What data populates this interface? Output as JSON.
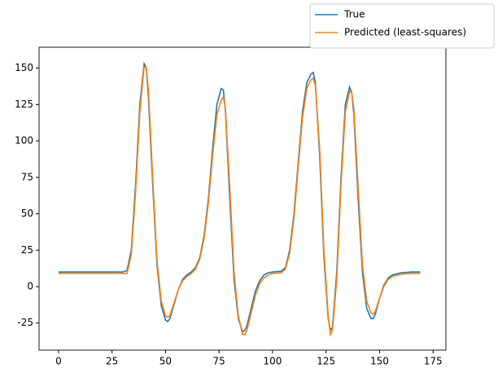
{
  "chart_data": {
    "type": "line",
    "x": [
      0,
      30,
      32,
      34,
      36,
      38,
      40,
      41,
      42,
      44,
      46,
      48,
      50,
      51,
      52,
      54,
      56,
      58,
      60,
      62,
      64,
      66,
      68,
      70,
      72,
      74,
      76,
      77,
      78,
      80,
      82,
      84,
      86,
      87,
      88,
      90,
      92,
      94,
      96,
      98,
      100,
      104,
      106,
      108,
      110,
      112,
      114,
      116,
      118,
      119,
      120,
      122,
      124,
      126,
      127,
      128,
      130,
      132,
      134,
      136,
      137,
      138,
      140,
      142,
      144,
      146,
      147,
      148,
      150,
      152,
      154,
      156,
      160,
      165,
      169
    ],
    "series": [
      {
        "name": "True",
        "color": "#1f77b4",
        "values": [
          10,
          10,
          11,
          25,
          70,
          125,
          153,
          150,
          130,
          70,
          15,
          -13,
          -23,
          -24,
          -22,
          -12,
          -2,
          5,
          8,
          10,
          13,
          20,
          35,
          60,
          95,
          125,
          136,
          135,
          120,
          60,
          5,
          -22,
          -31,
          -30,
          -27,
          -15,
          -3,
          4,
          8,
          9.5,
          10,
          10.5,
          13,
          25,
          50,
          85,
          120,
          140,
          146,
          147,
          140,
          90,
          20,
          -22,
          -30,
          -28,
          10,
          75,
          125,
          137,
          133,
          118,
          60,
          10,
          -15,
          -22,
          -22,
          -19,
          -8,
          1,
          6,
          8,
          9.5,
          10,
          10
        ]
      },
      {
        "name": "Predicted (least-squares)",
        "color": "#ff7f0e",
        "values": [
          9,
          9,
          9,
          22,
          65,
          120,
          151,
          150,
          135,
          75,
          18,
          -10,
          -20,
          -21,
          -20,
          -11,
          -2,
          4,
          7,
          9,
          12,
          19,
          33,
          57,
          90,
          118,
          128,
          130,
          122,
          68,
          10,
          -20,
          -33,
          -33,
          -30,
          -18,
          -6,
          2,
          6,
          8,
          9,
          9.5,
          12,
          23,
          47,
          82,
          116,
          136,
          142,
          143,
          138,
          95,
          25,
          -20,
          -33,
          -30,
          5,
          70,
          120,
          134,
          133,
          122,
          68,
          15,
          -10,
          -18,
          -19,
          -17,
          -8,
          0,
          5,
          7,
          8.5,
          9,
          9
        ]
      }
    ],
    "xlim": [
      -9.1,
      181
    ],
    "ylim": [
      -43.6,
      164.3
    ],
    "xticks": [
      0,
      25,
      50,
      75,
      100,
      125,
      150,
      175
    ],
    "yticks": [
      -25,
      0,
      25,
      50,
      75,
      100,
      125,
      150
    ],
    "legend": "upper right"
  }
}
